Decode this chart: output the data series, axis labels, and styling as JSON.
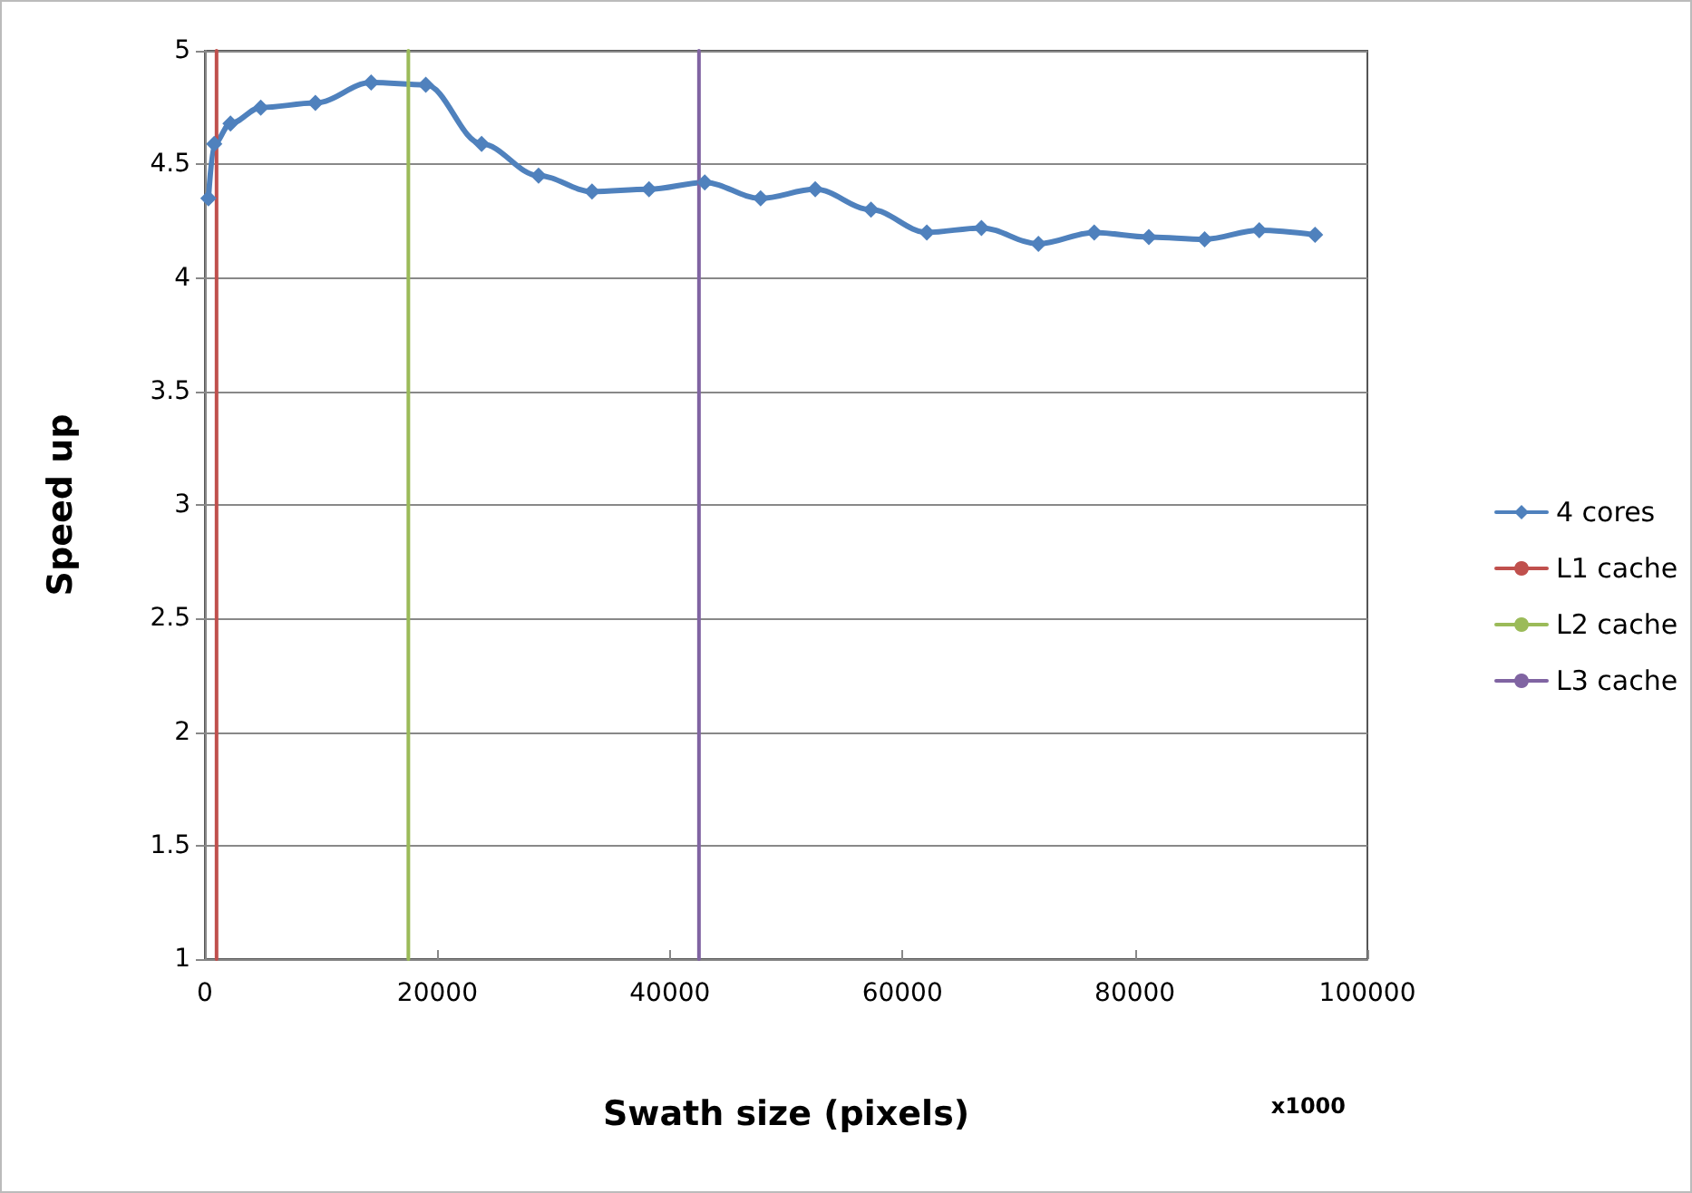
{
  "chart_data": {
    "type": "line",
    "xlabel": "Swath size (pixels)",
    "ylabel": "Speed up",
    "annotations": [
      "x1000"
    ],
    "x": [
      300,
      800,
      2200,
      4800,
      9500,
      14300,
      19000,
      23800,
      28700,
      33300,
      38200,
      43000,
      47800,
      52500,
      57300,
      62100,
      66800,
      71700,
      76500,
      81200,
      86000,
      90700,
      95500
    ],
    "series": [
      {
        "name": "4 cores",
        "color": "#4f81bd",
        "values": [
          4.35,
          4.59,
          4.68,
          4.75,
          4.77,
          4.86,
          4.85,
          4.59,
          4.45,
          4.38,
          4.39,
          4.42,
          4.35,
          4.39,
          4.3,
          4.2,
          4.22,
          4.15,
          4.2,
          4.18,
          4.17,
          4.21,
          4.19
        ]
      },
      {
        "name": "L1 cache",
        "color": "#c0504d",
        "marker": "none",
        "x": [
          1000,
          1000
        ],
        "values": [
          1,
          5
        ]
      },
      {
        "name": "L2 cache",
        "color": "#9bbb59",
        "marker": "none",
        "x": [
          17500,
          17500
        ],
        "values": [
          1,
          5
        ]
      },
      {
        "name": "L3 cache",
        "color": "#8064a2",
        "marker": "none",
        "x": [
          42500,
          42500
        ],
        "values": [
          1,
          5
        ]
      }
    ],
    "xlim": [
      0,
      100000
    ],
    "xticks": [
      0,
      20000,
      40000,
      60000,
      80000,
      100000
    ],
    "ylim": [
      1,
      5
    ],
    "yticks": [
      1,
      1.5,
      2,
      2.5,
      3,
      3.5,
      4,
      4.5,
      5
    ],
    "grid": "y",
    "legend": "right",
    "marker": "diamond",
    "line_style": "solid"
  }
}
